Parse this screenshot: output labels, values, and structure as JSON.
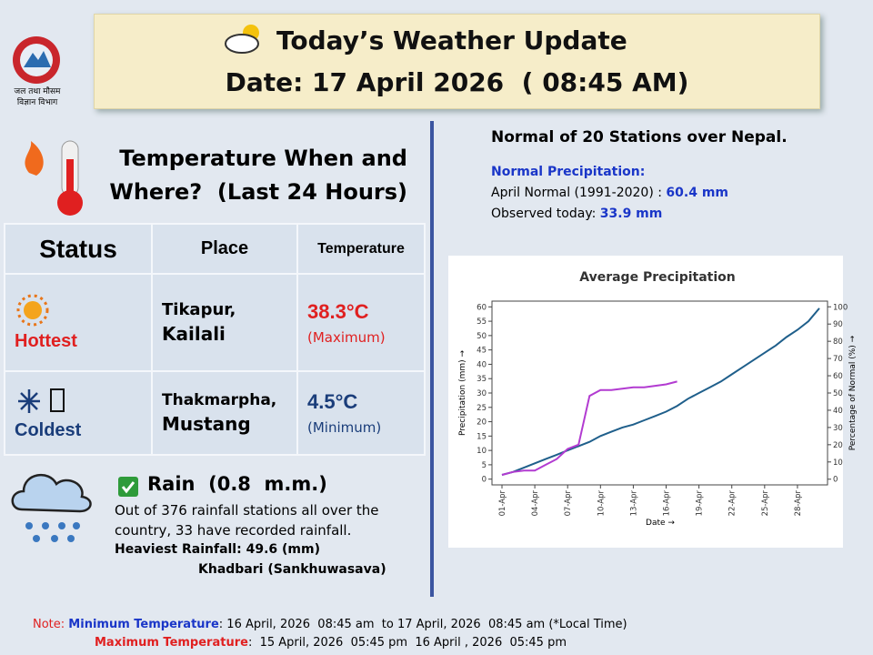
{
  "header": {
    "logo_text": [
      "जल तथा मौसम",
      "विज्ञान विभाग"
    ],
    "title": "Today’s Weather Update",
    "date": "Date: 17 April 2026  ( 08:45 AM)"
  },
  "temperature": {
    "heading": [
      "Temperature When and",
      "Where?  (Last 24 Hours)"
    ],
    "table": {
      "columns": [
        "Status",
        "Place",
        "Temperature"
      ],
      "rows": [
        [
          "Hottest",
          "Tikapur,",
          "Kailali",
          "38.3°C",
          "(Maximum)"
        ],
        [
          "Coldest",
          "Thakmarpha,",
          "Mustang",
          "4.5°C",
          "(Minimum)"
        ]
      ]
    }
  },
  "rain": {
    "title": "Rain  (0.8  m.m.)",
    "text": "Out of 376 rainfall stations all over the country, 33 have recorded rainfall.",
    "heaviest": "Heaviest Rainfall: 49.6 (mm)",
    "location": "Khadbari (Sankhuwasava)"
  },
  "normal": {
    "title": "Normal of 20 Stations over Nepal.",
    "subtitle": "Normal Precipitation:",
    "april_label": "April Normal (1991-2020) : ",
    "april_value": "60.4 mm",
    "observed_label": "Observed today: ",
    "observed_value": "33.9 mm"
  },
  "notes": {
    "prefix": "Note: ",
    "min_label": "Minimum Temperature",
    "min_text": ": 16 April, 2026  08:45 am  to 17 April, 2026  08:45 am (*Local Time)",
    "max_label": "Maximum Temperature",
    "max_text": ":  15 April, 2026  05:45 pm  16 April , 2026  05:45 pm"
  },
  "chart_data": {
    "type": "line",
    "title": "Average Precipitation",
    "x_label": "Date →",
    "y_label": "Precipitation (mm) →",
    "y2_label": "Percentage of Normal (%) →",
    "categories": [
      "01-Apr",
      null,
      null,
      "04-Apr",
      null,
      null,
      "07-Apr",
      null,
      null,
      "10-Apr",
      null,
      null,
      "13-Apr",
      null,
      null,
      "16-Apr",
      null,
      null,
      "19-Apr",
      null,
      null,
      "22-Apr",
      null,
      null,
      "25-Apr",
      null,
      null,
      "28-Apr",
      null,
      null
    ],
    "series": [
      {
        "color": "#1f5f8b",
        "values": [
          1.5,
          2.5,
          4,
          5.5,
          7,
          8.5,
          10,
          11.5,
          13,
          15,
          16.5,
          18,
          19,
          20.5,
          22,
          23.5,
          25.5,
          28,
          30,
          32,
          34,
          36.5,
          39,
          41.5,
          44,
          46.5,
          49.5,
          52,
          55,
          59.5
        ]
      },
      {
        "color": "#b23bd1",
        "values": [
          1.5,
          2.5,
          3,
          3,
          5,
          7,
          10.5,
          12,
          29,
          31,
          31,
          31.5,
          32,
          32,
          32.5,
          33,
          34,
          null,
          null,
          null,
          null,
          null,
          null,
          null,
          null,
          null,
          null,
          null,
          null,
          null
        ]
      }
    ],
    "ylim": [
      -2,
      62
    ],
    "yticks": [
      0,
      5,
      10,
      15,
      20,
      25,
      30,
      35,
      40,
      45,
      50,
      55,
      60
    ],
    "y2lim": [
      -3.3,
      103.3
    ],
    "y2ticks": [
      0,
      10,
      20,
      30,
      40,
      50,
      60,
      70,
      80,
      90,
      100
    ],
    "grid": false
  }
}
